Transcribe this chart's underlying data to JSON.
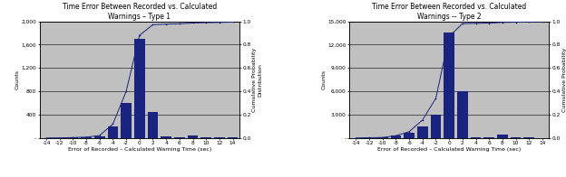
{
  "chart1": {
    "title": "Time Error Between Recorded vs. Calculated\nWarnings – Type 1",
    "xlabel": "Error of Recorded – Calculated Warning Time (sec)",
    "ylabel": "Counts",
    "ylabel2": "Cumulative Probability\nDistribution",
    "xlim": [
      -15,
      15
    ],
    "ylim": [
      0,
      2000
    ],
    "ylim2": [
      0,
      1.0
    ],
    "yticks": [
      0,
      400,
      800,
      1200,
      1600,
      2000
    ],
    "ytick_labels": [
      "-",
      "400",
      "800",
      "1,200",
      "1,600",
      "2,000"
    ],
    "yticks2": [
      0.0,
      0.2,
      0.4,
      0.6,
      0.8,
      1.0
    ],
    "xticks": [
      -14,
      -12,
      -10,
      -8,
      -6,
      -4,
      -2,
      0,
      2,
      4,
      6,
      8,
      10,
      12,
      14
    ],
    "bar_x": [
      -14,
      -12,
      -10,
      -8,
      -6,
      -4,
      -2,
      0,
      2,
      4,
      6,
      8,
      10,
      12,
      14
    ],
    "bar_heights": [
      5,
      5,
      8,
      15,
      30,
      200,
      600,
      1700,
      450,
      25,
      10,
      50,
      15,
      10,
      8
    ],
    "cdf_x": [
      -14,
      -12,
      -10,
      -8,
      -6,
      -4,
      -2,
      0,
      2,
      4,
      6,
      8,
      10,
      12,
      14
    ],
    "cdf_y": [
      0.001,
      0.002,
      0.004,
      0.008,
      0.022,
      0.12,
      0.4,
      0.88,
      0.97,
      0.975,
      0.978,
      0.985,
      0.988,
      0.99,
      0.993
    ],
    "bar_color": "#1a237e",
    "line_color": "#1a237e",
    "bg_color": "#c0c0c0"
  },
  "chart2": {
    "title": "Time Error Between Recorded vs. Calculated\nWarnings -- Type 2",
    "xlabel": "Error of Recorded – Calculated Warning Time (sec)",
    "ylabel": "Counts",
    "ylabel2": "Cumulative Probability\nDistribution",
    "xlim": [
      -15,
      15
    ],
    "ylim": [
      0,
      15000
    ],
    "ylim2": [
      0,
      1.0
    ],
    "yticks": [
      0,
      3000,
      6000,
      9000,
      12000,
      15000
    ],
    "ytick_labels": [
      "-",
      "3,000",
      "6,000",
      "9,000",
      "12,000",
      "15,000"
    ],
    "yticks2": [
      0.0,
      0.2,
      0.4,
      0.6,
      0.8,
      1.0
    ],
    "xticks": [
      -14,
      -12,
      -10,
      -8,
      -6,
      -4,
      -2,
      0,
      2,
      4,
      6,
      8,
      10,
      12,
      14
    ],
    "bar_x": [
      -14,
      -12,
      -10,
      -8,
      -6,
      -4,
      -2,
      0,
      2,
      4,
      6,
      8,
      10,
      12,
      14
    ],
    "bar_heights": [
      20,
      30,
      50,
      300,
      700,
      1500,
      3000,
      13500,
      6000,
      100,
      50,
      400,
      100,
      50,
      30
    ],
    "cdf_x": [
      -14,
      -12,
      -10,
      -8,
      -6,
      -4,
      -2,
      0,
      2,
      4,
      6,
      8,
      10,
      12,
      14
    ],
    "cdf_y": [
      0.001,
      0.003,
      0.005,
      0.02,
      0.055,
      0.155,
      0.34,
      0.87,
      0.98,
      0.982,
      0.984,
      0.99,
      0.992,
      0.994,
      0.996
    ],
    "bar_color": "#1a237e",
    "line_color": "#1a237e",
    "bg_color": "#c0c0c0"
  },
  "figure_bg": "#ffffff",
  "fontsize_title": 5.5,
  "fontsize_label": 4.5,
  "fontsize_tick": 4.2
}
